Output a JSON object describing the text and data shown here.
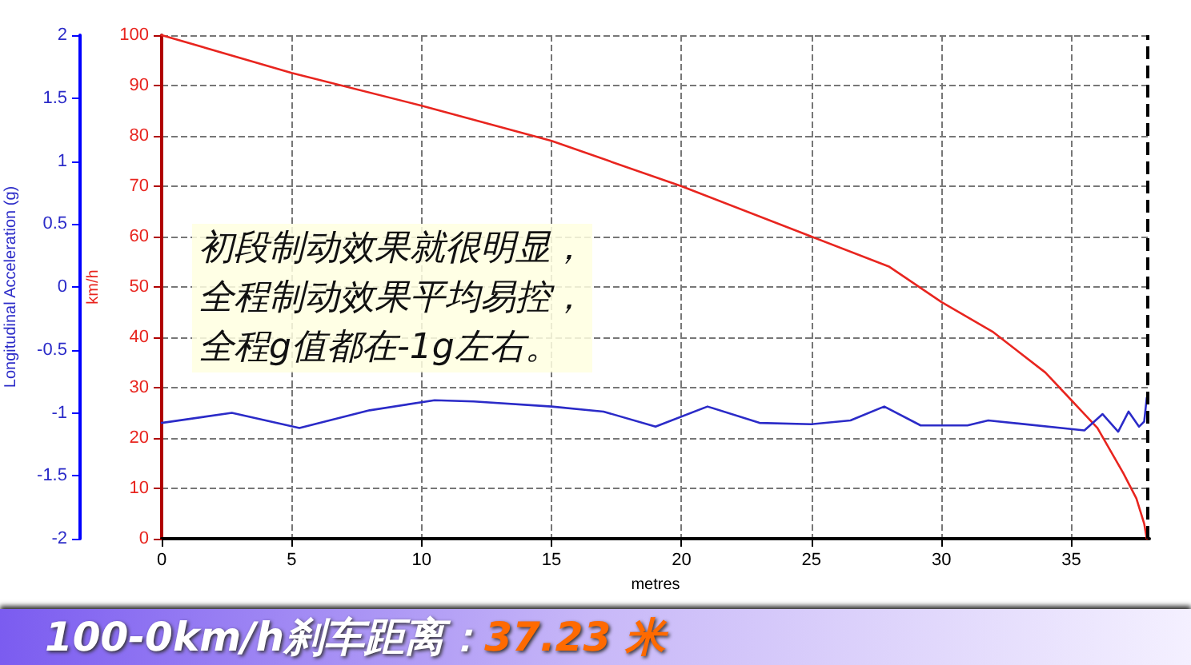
{
  "chart_data": {
    "type": "line",
    "xlabel": "metres",
    "ylabel": "Longitudinal Acceleration (g)",
    "y2label": "km/h",
    "xlim": [
      0,
      38
    ],
    "xticks": [
      0,
      5,
      10,
      15,
      20,
      25,
      30,
      35
    ],
    "ylim": [
      -2,
      2
    ],
    "yticks": [
      -2,
      -1.5,
      -1,
      -0.5,
      0,
      0.5,
      1,
      1.5,
      2
    ],
    "y2lim": [
      0,
      100
    ],
    "y2ticks": [
      0,
      10,
      20,
      30,
      40,
      50,
      60,
      70,
      80,
      90,
      100
    ],
    "grid": true,
    "marker": "none",
    "line_style": "solid",
    "series": [
      {
        "color": "#e8251f",
        "axis": "y2",
        "x": [
          0,
          5,
          10,
          15,
          20,
          25,
          28,
          30,
          32,
          34,
          35,
          36,
          37,
          37.5,
          37.8,
          37.9
        ],
        "values": [
          100,
          92.5,
          86,
          79,
          70,
          60,
          54,
          47,
          41,
          33,
          27.5,
          22,
          13,
          8,
          3,
          0
        ]
      },
      {
        "color": "#2b2bc8",
        "x": [
          0,
          2.7,
          5.3,
          8,
          10.5,
          12,
          15,
          17,
          19,
          21,
          23,
          25,
          26.5,
          27.8,
          29.2,
          31,
          31.8,
          35.5,
          36.2,
          36.8,
          37.2,
          37.6,
          37.8,
          37.9
        ],
        "values": [
          -1.08,
          -1.0,
          -1.12,
          -0.98,
          -0.9,
          -0.91,
          -0.95,
          -0.99,
          -1.11,
          -0.95,
          -1.08,
          -1.09,
          -1.06,
          -0.95,
          -1.1,
          -1.1,
          -1.06,
          -1.14,
          -1.01,
          -1.15,
          -0.99,
          -1.11,
          -1.07,
          -0.88
        ]
      }
    ],
    "ref_lines": [
      {
        "axis": "x",
        "value": 37.9,
        "color": "#000000",
        "line_style": "dashed"
      }
    ],
    "annotations": [
      "初段制动效果就很明显，",
      "全程制动效果平均易控，",
      "全程g值都在-1g左右。",
      "100-0km/h刹车距离：37.23 米"
    ]
  }
}
